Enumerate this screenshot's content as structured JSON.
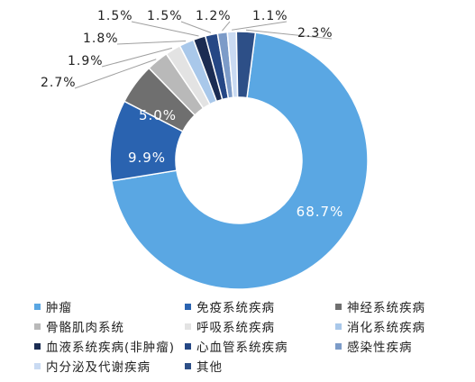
{
  "chart_data": {
    "type": "pie",
    "donut": true,
    "title": "",
    "categories": [
      "肿瘤",
      "免疫系统疾病",
      "神经系统疾病",
      "骨骼肌肉系统",
      "呼吸系统疾病",
      "消化系统疾病",
      "血液系统疾病(非肿瘤)",
      "心血管系统疾病",
      "感染性疾病",
      "内分泌及代谢疾病",
      "其他"
    ],
    "values": [
      68.7,
      9.9,
      5.0,
      2.7,
      1.9,
      1.8,
      1.5,
      1.5,
      1.2,
      1.1,
      2.3
    ],
    "labels": [
      "68.7%",
      "9.9%",
      "5.0%",
      "2.7%",
      "1.9%",
      "1.8%",
      "1.5%",
      "1.5%",
      "1.2%",
      "1.1%",
      "2.3%"
    ],
    "colors": [
      "#5aa7e3",
      "#2a63b0",
      "#6f6f6f",
      "#b9b9b9",
      "#e3e3e3",
      "#a9c8ea",
      "#1b2c52",
      "#254785",
      "#7c9bc8",
      "#c9daf2",
      "#2d4f87"
    ],
    "legend_position": "bottom"
  }
}
